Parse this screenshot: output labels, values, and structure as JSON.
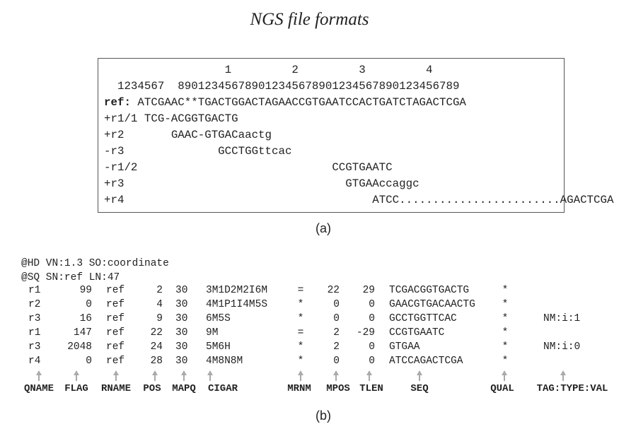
{
  "title": "NGS file formats",
  "panel_a": {
    "caption": "(a)",
    "ruler_tens": "                  1         2         3         4",
    "ruler_units": "  1234567  890123456789012345678901234567890123456789",
    "ref_label": "ref:",
    "ref_seq": " ATCGAAC**TGACTGGACTAGAACCGTGAATCCACTGATCTAGACTCGA",
    "reads": [
      {
        "label": "+r1/1",
        "seq": " TCG-ACGGTGACTG"
      },
      {
        "label": "+r2",
        "seq": "     GAAC-GTGACaactg"
      },
      {
        "label": "-r3",
        "seq": "            GCCTGGttcac"
      },
      {
        "label": "-r1/2",
        "seq": "                             CCGTGAATC"
      },
      {
        "label": "+r3",
        "seq": "                               GTGAAccaggc"
      },
      {
        "label": "+r4",
        "seq": "                                   ATCC........................AGACTCGA"
      }
    ]
  },
  "panel_b": {
    "caption": "(b)",
    "header_lines": [
      "@HD VN:1.3 SO:coordinate",
      "@SQ SN:ref LN:47"
    ],
    "rows": [
      {
        "qname": "r1",
        "flag": "99",
        "rname": "ref",
        "pos": "2",
        "mapq": "30",
        "cigar": "3M1D2M2I6M",
        "mrnm": "=",
        "mpos": "22",
        "tlen": "29",
        "seq": "TCGACGGTGACTG",
        "qual": "*",
        "tag": ""
      },
      {
        "qname": "r2",
        "flag": "0",
        "rname": "ref",
        "pos": "4",
        "mapq": "30",
        "cigar": "4M1P1I4M5S",
        "mrnm": "*",
        "mpos": "0",
        "tlen": "0",
        "seq": "GAACGTGACAACTG",
        "qual": "*",
        "tag": ""
      },
      {
        "qname": "r3",
        "flag": "16",
        "rname": "ref",
        "pos": "9",
        "mapq": "30",
        "cigar": "6M5S",
        "mrnm": "*",
        "mpos": "0",
        "tlen": "0",
        "seq": "GCCTGGTTCAC",
        "qual": "*",
        "tag": "NM:i:1"
      },
      {
        "qname": "r1",
        "flag": "147",
        "rname": "ref",
        "pos": "22",
        "mapq": "30",
        "cigar": "9M",
        "mrnm": "=",
        "mpos": "2",
        "tlen": "-29",
        "seq": "CCGTGAATC",
        "qual": "*",
        "tag": ""
      },
      {
        "qname": "r3",
        "flag": "2048",
        "rname": "ref",
        "pos": "24",
        "mapq": "30",
        "cigar": "5M6H",
        "mrnm": "*",
        "mpos": "2",
        "tlen": "0",
        "seq": "GTGAA",
        "qual": "*",
        "tag": "NM:i:0"
      },
      {
        "qname": "r4",
        "flag": "0",
        "rname": "ref",
        "pos": "28",
        "mapq": "30",
        "cigar": "4M8N8M",
        "mrnm": "*",
        "mpos": "0",
        "tlen": "0",
        "seq": "ATCCAGACTCGA",
        "qual": "*",
        "tag": ""
      }
    ],
    "fields": [
      "QNAME",
      "FLAG",
      "RNAME",
      "POS",
      "MAPQ",
      "CIGAR",
      "MRNM",
      "MPOS",
      "TLEN",
      "SEQ",
      "QUAL",
      "TAG:TYPE:VAL"
    ]
  }
}
